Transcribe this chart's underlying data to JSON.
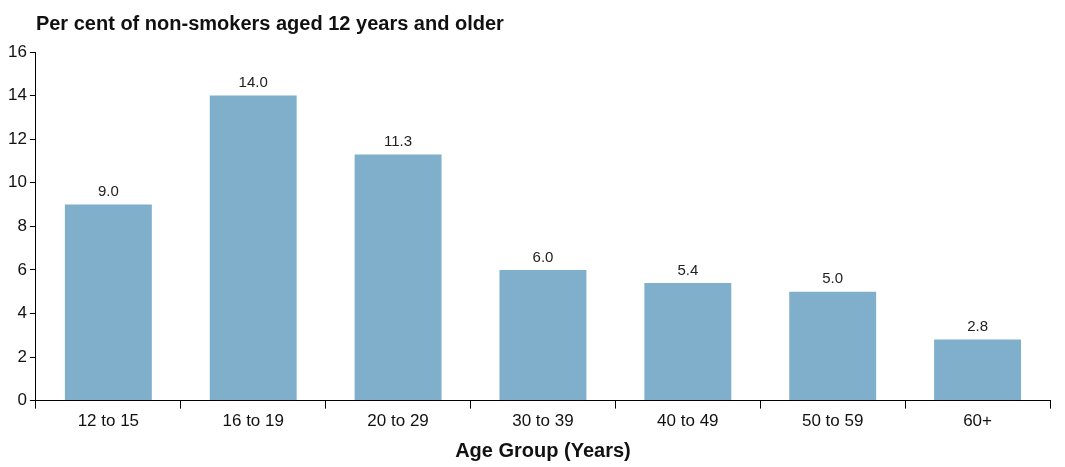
{
  "chart_data": {
    "type": "bar",
    "title": "Per cent of non-smokers aged 12 years and older",
    "xlabel": "Age Group (Years)",
    "categories": [
      "12 to 15",
      "16 to 19",
      "20 to 29",
      "30 to 39",
      "40 to 49",
      "50 to 59",
      "60+"
    ],
    "values": [
      9.0,
      14.0,
      11.3,
      6.0,
      5.4,
      5.0,
      2.8
    ],
    "value_labels": [
      "9.0",
      "14.0",
      "11.3",
      "6.0",
      "5.4",
      "5.0",
      "2.8"
    ],
    "color": "#7fafcb",
    "ylim": [
      0,
      16
    ],
    "yticks": [
      0,
      2,
      4,
      6,
      8,
      10,
      12,
      14,
      16
    ],
    "grid": false,
    "legend": false
  }
}
